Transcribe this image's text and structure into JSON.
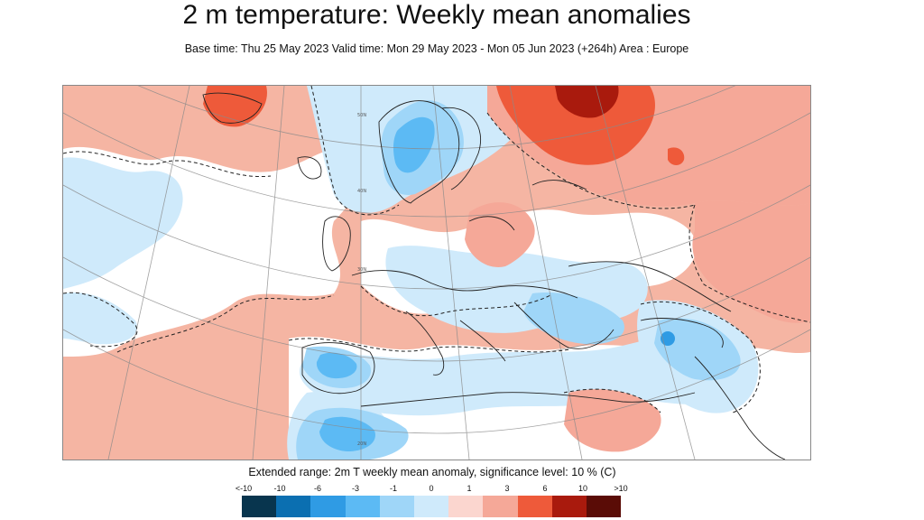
{
  "title": "2 m temperature: Weekly mean anomalies",
  "subtitle": "Base time: Thu 25 May 2023 Valid time: Mon 29 May 2023 - Mon 05 Jun 2023 (+264h) Area : Europe",
  "legend": {
    "title": "Extended range: 2m T weekly mean anomaly, significance level: 10 % (C)",
    "labels": [
      "<-10",
      "-10",
      "-6",
      "-3",
      "-1",
      "0",
      "1",
      "3",
      "6",
      "10",
      ">10"
    ],
    "colors": [
      "#08354e",
      "#0b6fb1",
      "#2f9be4",
      "#5cbaf4",
      "#9fd6f8",
      "#cfeafb",
      "#fbd6cf",
      "#f5a898",
      "#ee5a3a",
      "#a91a0d",
      "#5a0c06"
    ]
  },
  "map": {
    "area": "Europe",
    "graticule_labels": [
      "50N",
      "40N",
      "30N",
      "20N"
    ]
  }
}
